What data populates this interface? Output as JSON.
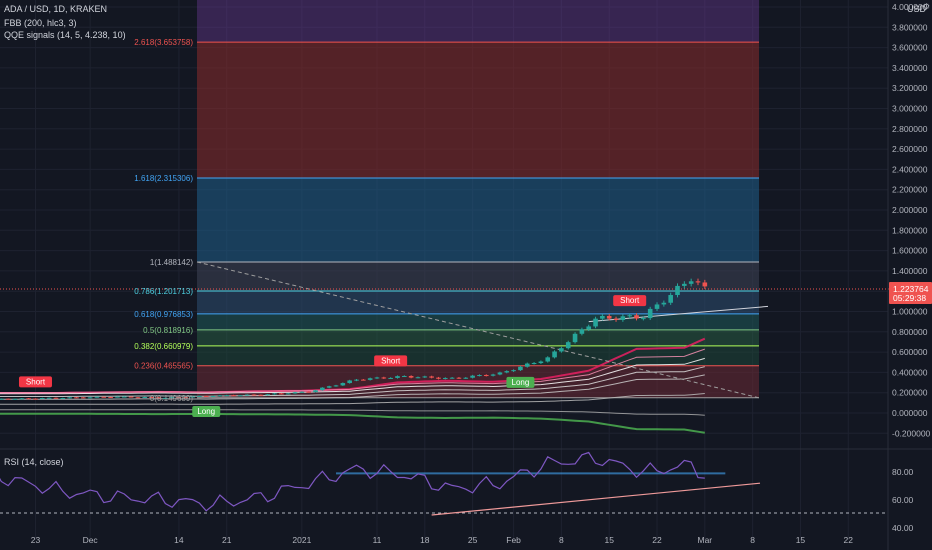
{
  "legend": {
    "symbol": "ADA / USD, 1D, KRAKEN",
    "fbb": "FBB (200, hlc3, 3)",
    "qqe": "QQE signals (14, 5, 4.238, 10)",
    "rsi": "RSI (14, close)"
  },
  "axis": {
    "currency": "USD"
  },
  "price_tag": {
    "value": "1.223764",
    "countdown": "05:29:38"
  },
  "colors": {
    "background": "#131722",
    "bull": "#26a69a",
    "bear": "#ef5350",
    "fib_top": "#7b3ea8",
    "fib_2618": "#8b2c2c",
    "fib_1618": "#1f5f8b",
    "rsi_line": "#7e57c2",
    "short_badge": "#f23645",
    "long_badge": "#4caf50"
  },
  "chart_data": [
    {
      "type": "line",
      "title": "ADA / USD, 1D, KRAKEN",
      "x_tick_labels": [
        "23",
        "Dec",
        "14",
        "21",
        "2021",
        "11",
        "18",
        "25",
        "Feb",
        "8",
        "15",
        "22",
        "Mar",
        "8",
        "15",
        "22"
      ],
      "ylim": [
        -0.3,
        4.2
      ],
      "y_tick_labels": [
        "-0.200000",
        "0.000000",
        "0.200000",
        "0.400000",
        "0.600000",
        "0.800000",
        "1.000000",
        "1.200000",
        "1.400000",
        "1.600000",
        "1.800000",
        "2.000000",
        "2.200000",
        "2.400000",
        "2.600000",
        "2.800000",
        "3.000000",
        "3.200000",
        "3.400000",
        "3.600000",
        "3.800000",
        "4.000000"
      ],
      "fib_levels": [
        {
          "ratio": "2.618",
          "value": 3.653758,
          "label": "2.618(3.653758)"
        },
        {
          "ratio": "1.618",
          "value": 2.315306,
          "label": "1.618(2.315306)"
        },
        {
          "ratio": "1",
          "value": 1.488142,
          "label": "1(1.488142)"
        },
        {
          "ratio": "0.786",
          "value": 1.201713,
          "label": "0.786(1.201713)"
        },
        {
          "ratio": "0.618",
          "value": 0.976853,
          "label": "0.618(0.976853)"
        },
        {
          "ratio": "0.5",
          "value": 0.818916,
          "label": "0.5(0.818916)"
        },
        {
          "ratio": "0.382",
          "value": 0.660979,
          "label": "0.382(0.660979)"
        },
        {
          "ratio": "0.236",
          "value": 0.465565,
          "label": "0.236(0.465565)"
        },
        {
          "ratio": "0",
          "value": 0.149689,
          "label": "0(0.149689)"
        }
      ],
      "series": [
        {
          "name": "ADA / USD",
          "x": [
            "Nov 20",
            "Nov 27",
            "Dec 4",
            "Dec 11",
            "Dec 18",
            "Dec 25",
            "Jan 1",
            "Jan 8",
            "Jan 15",
            "Jan 22",
            "Jan 29",
            "Feb 5",
            "Feb 12",
            "Feb 19",
            "Feb 26",
            "Feb 28"
          ],
          "values": [
            0.14,
            0.15,
            0.16,
            0.15,
            0.17,
            0.18,
            0.21,
            0.33,
            0.36,
            0.34,
            0.39,
            0.54,
            0.93,
            0.95,
            1.33,
            1.22
          ]
        }
      ],
      "signals": [
        {
          "label": "Short",
          "date": "Nov 23"
        },
        {
          "label": "Long",
          "date": "Dec 17"
        },
        {
          "label": "Short",
          "date": "Jan 13"
        },
        {
          "label": "Long",
          "date": "Feb 1"
        },
        {
          "label": "Short",
          "date": "Feb 17"
        }
      ]
    },
    {
      "type": "line",
      "title": "RSI (14, close)",
      "ylim": [
        37,
        95
      ],
      "y_tick_labels": [
        "40.00",
        "60.00",
        "80.00"
      ],
      "series": [
        {
          "name": "RSI (14, close)",
          "x": [
            "Nov 20",
            "Nov 27",
            "Dec 4",
            "Dec 11",
            "Dec 18",
            "Dec 25",
            "Jan 1",
            "Jan 8",
            "Jan 15",
            "Jan 22",
            "Jan 29",
            "Feb 5",
            "Feb 12",
            "Feb 19",
            "Feb 26",
            "Feb 28"
          ],
          "values": [
            74,
            66,
            62,
            60,
            57,
            62,
            72,
            82,
            78,
            68,
            72,
            86,
            90,
            80,
            85,
            78
          ]
        }
      ]
    }
  ]
}
